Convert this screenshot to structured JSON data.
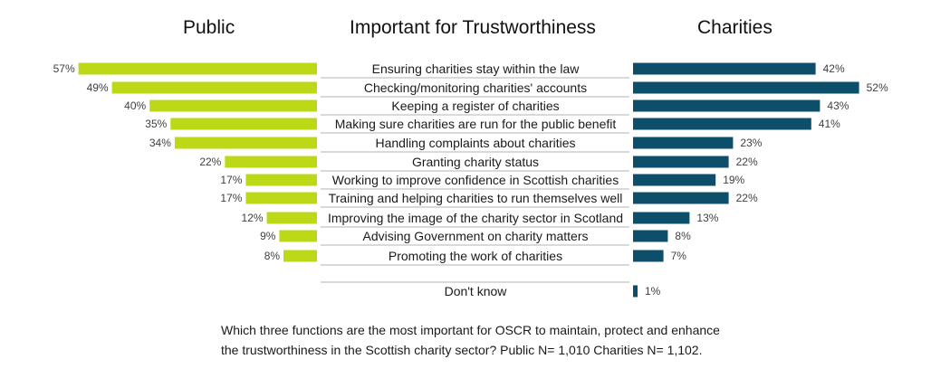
{
  "headings": {
    "left": "Public",
    "center": "Important for Trustworthiness",
    "right": "Charities"
  },
  "caption": {
    "line1": "Which three functions are the most important for OSCR to maintain, protect and enhance",
    "line2": "the trustworthiness in the Scottish charity sector? Public N= 1,010 Charities N= 1,102."
  },
  "colors": {
    "public": "#bdd816",
    "charities": "#0d4f6b",
    "separator": "#b3b3b3"
  },
  "chart_data": {
    "type": "bar",
    "orientation": "horizontal-butterfly",
    "title": "Important for Trustworthiness",
    "categories": [
      "Ensuring charities stay within the law",
      "Checking/monitoring charities' accounts",
      "Keeping a register of charities",
      "Making sure charities are run for the public benefit",
      "Handling complaints about charities",
      "Granting charity status",
      "Working to improve confidence in Scottish charities",
      "Training and helping charities to run themselves well",
      "Improving the image of the charity sector in Scotland",
      "Advising Government on charity matters",
      "Promoting the work of charities",
      "Don't know"
    ],
    "series": [
      {
        "name": "Public",
        "values": [
          57,
          49,
          40,
          35,
          34,
          22,
          17,
          17,
          12,
          9,
          8,
          null
        ],
        "labels": [
          "57%",
          "49%",
          "40%",
          "35%",
          "34%",
          "22%",
          "17%",
          "17%",
          "12%",
          "9%",
          "8%",
          ""
        ]
      },
      {
        "name": "Charities",
        "values": [
          42,
          52,
          43,
          41,
          23,
          22,
          19,
          22,
          13,
          8,
          7,
          1
        ],
        "labels": [
          "42%",
          "52%",
          "43%",
          "41%",
          "23%",
          "22%",
          "19%",
          "22%",
          "13%",
          "8%",
          "7%",
          "1%"
        ]
      }
    ],
    "unit": "%",
    "grid": false,
    "legend": "none"
  }
}
